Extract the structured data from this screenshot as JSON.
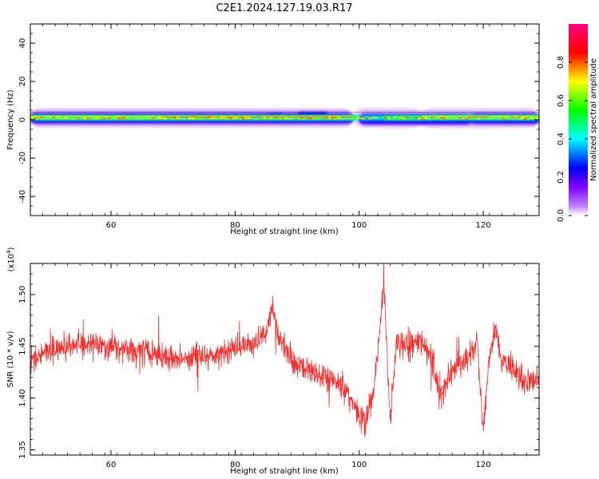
{
  "title": "C2E1.2024.127.19.03.R17",
  "chart_data": [
    {
      "type": "heatmap",
      "name": "spectrogram",
      "xlabel": "Height of straight line (km)",
      "ylabel": "Frequency (Hz)",
      "xlim": [
        47,
        129
      ],
      "ylim": [
        -50,
        50
      ],
      "xticks": [
        60,
        80,
        100,
        120
      ],
      "xtick_labels": [
        "60",
        "80",
        "100",
        "120"
      ],
      "yticks": [
        -40,
        -20,
        0,
        20,
        40
      ],
      "ytick_labels": [
        "-40",
        "-20",
        "0",
        "20",
        "40"
      ],
      "band": {
        "center_hz": 1,
        "half_width_hz": 2.5,
        "description_points_km": [
          47,
          60,
          80,
          90,
          95,
          100,
          103,
          110,
          120,
          125,
          129
        ]
      },
      "colorbar": {
        "label": "Normalized spectral amplitude",
        "range": [
          0,
          1
        ],
        "ticks": [
          0.0,
          0.2,
          0.4,
          0.6,
          0.8
        ],
        "tick_labels": [
          "0.0",
          "0.2",
          "0.4",
          "0.6",
          "0.8"
        ],
        "colors": [
          "#ffffff",
          "#8000ff",
          "#0000ff",
          "#00ffff",
          "#00ff00",
          "#ffff00",
          "#ff0000",
          "#ff0080"
        ]
      },
      "grid": false
    },
    {
      "type": "line",
      "name": "snr",
      "xlabel": "Height of straight line (km)",
      "ylabel": "SNR (10 * v/v)",
      "y_multiplier": "(x10",
      "y_multiplier_exp": "4",
      "y_multiplier_close": ")",
      "xlim": [
        47,
        129
      ],
      "ylim": [
        1.345,
        1.53
      ],
      "xticks": [
        60,
        80,
        100,
        120
      ],
      "xtick_labels": [
        "60",
        "80",
        "100",
        "120"
      ],
      "yticks": [
        1.35,
        1.4,
        1.45,
        1.5
      ],
      "ytick_labels": [
        "1.35",
        "1.40",
        "1.45",
        "1.50"
      ],
      "color": "#ee3333",
      "grid": false,
      "series": [
        {
          "x": [
            47,
            50,
            55,
            60,
            65,
            70,
            75,
            78,
            80,
            83,
            85,
            86,
            87,
            89,
            90,
            93,
            95,
            97,
            99,
            100,
            101,
            102,
            103,
            104,
            104.5,
            105,
            106,
            108,
            110,
            112,
            113,
            115,
            117,
            119,
            120,
            121,
            122,
            123,
            125,
            127,
            129
          ],
          "y": [
            1.435,
            1.445,
            1.452,
            1.45,
            1.445,
            1.438,
            1.44,
            1.442,
            1.447,
            1.452,
            1.462,
            1.49,
            1.46,
            1.44,
            1.43,
            1.425,
            1.42,
            1.412,
            1.395,
            1.385,
            1.38,
            1.395,
            1.44,
            1.515,
            1.44,
            1.375,
            1.455,
            1.45,
            1.455,
            1.435,
            1.4,
            1.43,
            1.435,
            1.455,
            1.37,
            1.44,
            1.47,
            1.435,
            1.425,
            1.418,
            1.415
          ]
        }
      ]
    }
  ]
}
